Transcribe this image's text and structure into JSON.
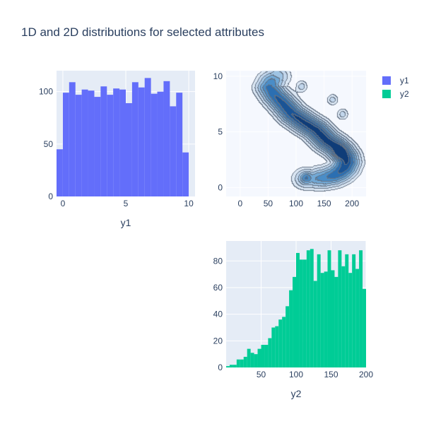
{
  "chart_data": {
    "type": "scatter_matrix_histogram_kde",
    "title": "1D and 2D distributions for selected attributes",
    "colors": {
      "y1": "#636efa",
      "y2": "#00cc96",
      "plot_bg_hist": "#e5ecf6",
      "plot_bg_kde": "#f5f8fe",
      "grid": "#ffffff",
      "text": "#2a3f5f",
      "contour_line": "#3a4a5f",
      "kde_levels": [
        "#dae6f3",
        "#c2d6ec",
        "#9ec3e3",
        "#72a9d6",
        "#4a8dc7",
        "#2b6fb2",
        "#1a5496",
        "#0f3c78"
      ]
    },
    "legend": {
      "placement": "top-right",
      "entries": [
        {
          "name": "y1",
          "color": "#636efa"
        },
        {
          "name": "y2",
          "color": "#00cc96"
        }
      ]
    },
    "panels": [
      {
        "id": "hist-y1",
        "type": "bar",
        "xlabel": "y1",
        "ylabel": "",
        "xlim": [
          -0.5,
          10.5
        ],
        "ylim": [
          0,
          120
        ],
        "xticks": [
          0,
          5,
          10
        ],
        "yticks": [
          0,
          50,
          100
        ],
        "bin_width": 0.5,
        "bin_starts": [
          -0.5,
          0,
          0.5,
          1,
          1.5,
          2,
          2.5,
          3,
          3.5,
          4,
          4.5,
          5,
          5.5,
          6,
          6.5,
          7,
          7.5,
          8,
          8.5,
          9,
          9.5,
          10
        ],
        "values": [
          45,
          99,
          109,
          97,
          102,
          101,
          95,
          105,
          97,
          103,
          102,
          89,
          109,
          104,
          113,
          98,
          100,
          110,
          86,
          99,
          42,
          0
        ]
      },
      {
        "id": "kde-y1-y2",
        "type": "heatmap",
        "subtype": "density_contour",
        "xlim": [
          -25,
          225
        ],
        "ylim": [
          -0.8,
          10.5
        ],
        "xticks": [
          0,
          50,
          100,
          150,
          200
        ],
        "yticks": [
          0,
          5,
          10
        ],
        "density_path": {
          "x_center": [
            65,
            56,
            52,
            62,
            77,
            93,
            113,
            135,
            155,
            170,
            181,
            188,
            190,
            186,
            178,
            167,
            152,
            133,
            118
          ],
          "y": [
            10.0,
            9.5,
            9.0,
            8.3,
            7.5,
            6.6,
            5.9,
            5.2,
            4.2,
            3.7,
            3.2,
            2.7,
            2.3,
            1.8,
            1.4,
            1.1,
            0.9,
            0.8,
            0.8
          ]
        },
        "peaks": [
          {
            "x": 118,
            "y": 0.9,
            "level": 7
          },
          {
            "x": 178,
            "y": 3.2,
            "level": 6
          },
          {
            "x": 183,
            "y": 6.6,
            "level": 6
          },
          {
            "x": 165,
            "y": 7.9,
            "level": 5
          },
          {
            "x": 110,
            "y": 9.1,
            "level": 5
          }
        ]
      },
      {
        "id": "hist-y2",
        "type": "bar",
        "xlabel": "y2",
        "ylabel": "",
        "xlim": [
          0,
          200
        ],
        "ylim": [
          0,
          95
        ],
        "xticks": [
          50,
          100,
          150,
          200
        ],
        "yticks": [
          0,
          20,
          40,
          60,
          80
        ],
        "bin_width": 5,
        "bin_starts": [
          0,
          5,
          10,
          15,
          20,
          25,
          30,
          35,
          40,
          45,
          50,
          55,
          60,
          65,
          70,
          75,
          80,
          85,
          90,
          95,
          100,
          105,
          110,
          115,
          120,
          125,
          130,
          135,
          140,
          145,
          150,
          155,
          160,
          165,
          170,
          175,
          180,
          185,
          190,
          195
        ],
        "values": [
          1,
          2,
          2,
          6,
          6,
          8,
          14,
          11,
          10,
          14,
          17,
          17,
          22,
          30,
          31,
          36,
          38,
          46,
          58,
          68,
          86,
          81,
          81,
          88,
          89,
          65,
          85,
          71,
          72,
          88,
          73,
          68,
          88,
          76,
          85,
          71,
          85,
          74,
          88,
          59
        ]
      }
    ]
  }
}
